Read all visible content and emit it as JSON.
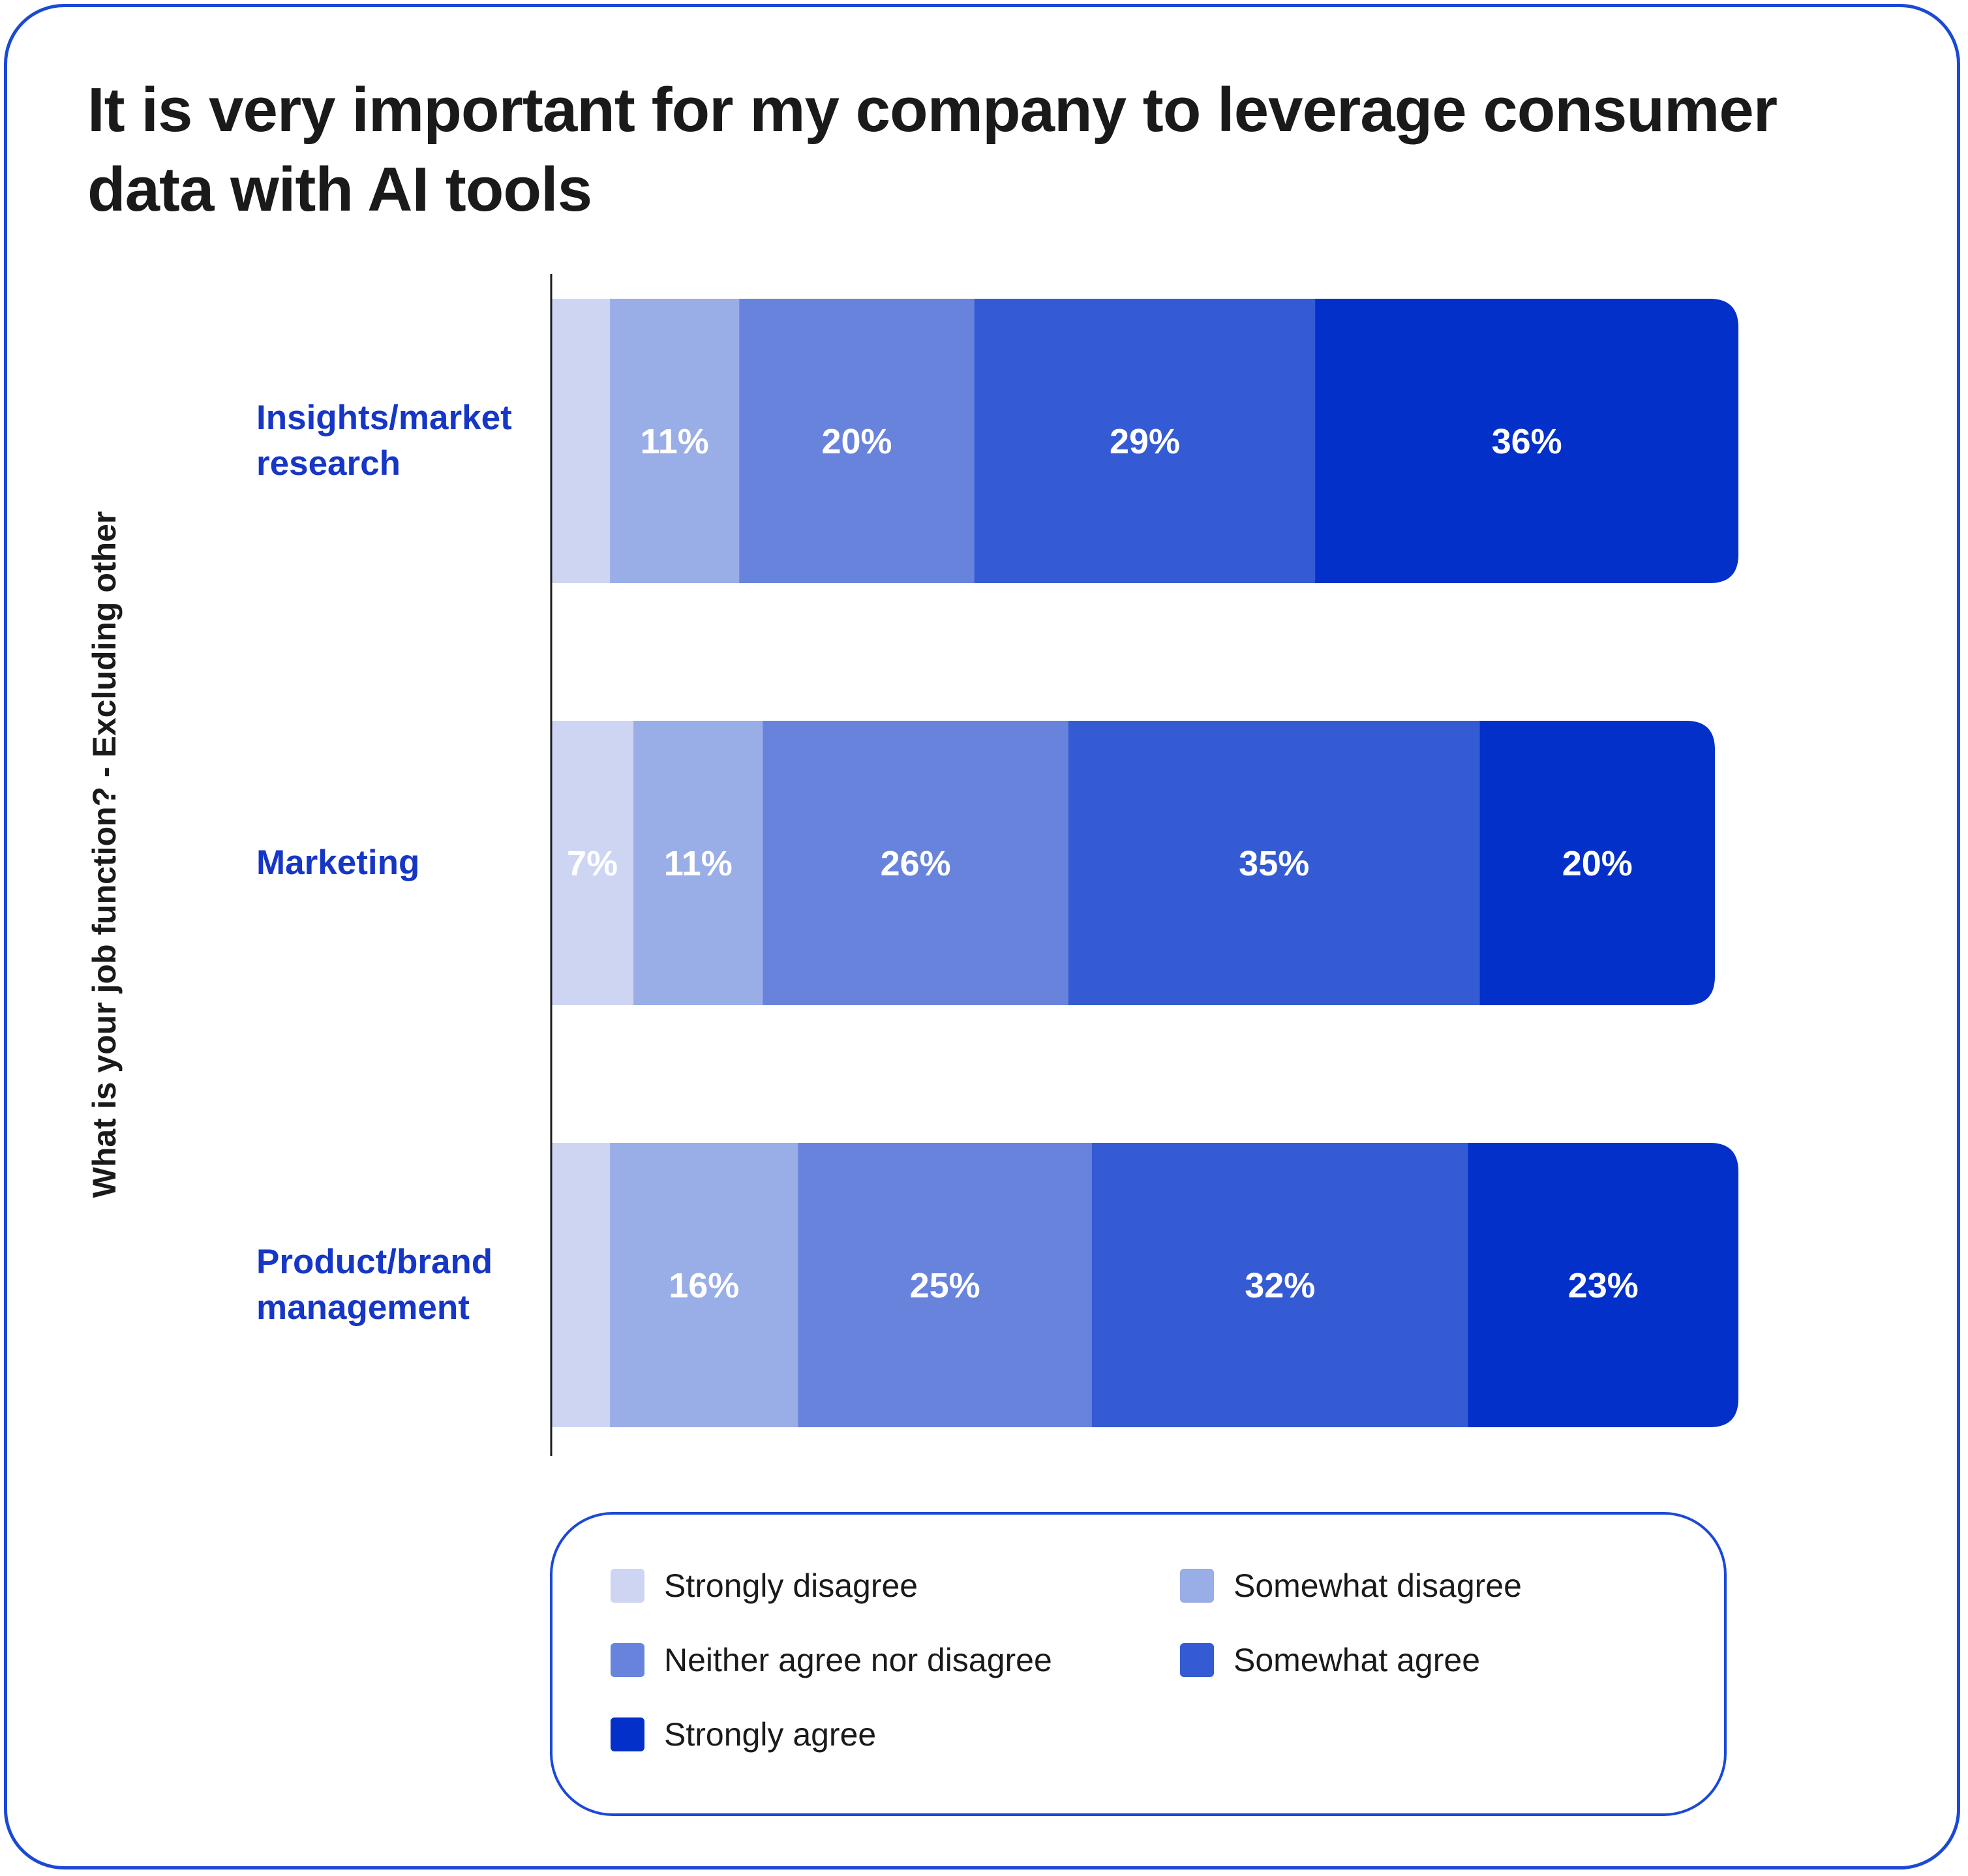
{
  "chart_data": {
    "type": "bar",
    "orientation": "horizontal",
    "stacked": true,
    "title": "It is very important for my company to leverage consumer data with AI tools",
    "ylabel": "What is your job function? - Excluding other",
    "xlabel": "",
    "xlim": [
      0,
      100
    ],
    "grid": false,
    "legend_position": "bottom",
    "categories": [
      {
        "lines": [
          "Insights/market",
          "research"
        ]
      },
      {
        "lines": [
          "Marketing"
        ]
      },
      {
        "lines": [
          "Product/brand",
          "management"
        ]
      }
    ],
    "series": [
      {
        "name": "Strongly disagree",
        "color": "#cdd5f3",
        "values": [
          5,
          7,
          5
        ],
        "labels": [
          "",
          "7%",
          ""
        ]
      },
      {
        "name": "Somewhat disagree",
        "color": "#99ade7",
        "values": [
          11,
          11,
          16
        ],
        "labels": [
          "11%",
          "11%",
          "16%"
        ]
      },
      {
        "name": "Neither agree nor disagree",
        "color": "#6783dc",
        "values": [
          20,
          26,
          25
        ],
        "labels": [
          "20%",
          "26%",
          "25%"
        ]
      },
      {
        "name": "Somewhat agree",
        "color": "#345bd3",
        "values": [
          29,
          35,
          32
        ],
        "labels": [
          "29%",
          "35%",
          "32%"
        ]
      },
      {
        "name": "Strongly agree",
        "color": "#0230c8",
        "values": [
          36,
          20,
          23
        ],
        "labels": [
          "36%",
          "20%",
          "23%"
        ]
      }
    ]
  },
  "colors": {
    "category_label": "#1636c6",
    "border": "#1b49d6",
    "axis": "#1a1a1a"
  }
}
